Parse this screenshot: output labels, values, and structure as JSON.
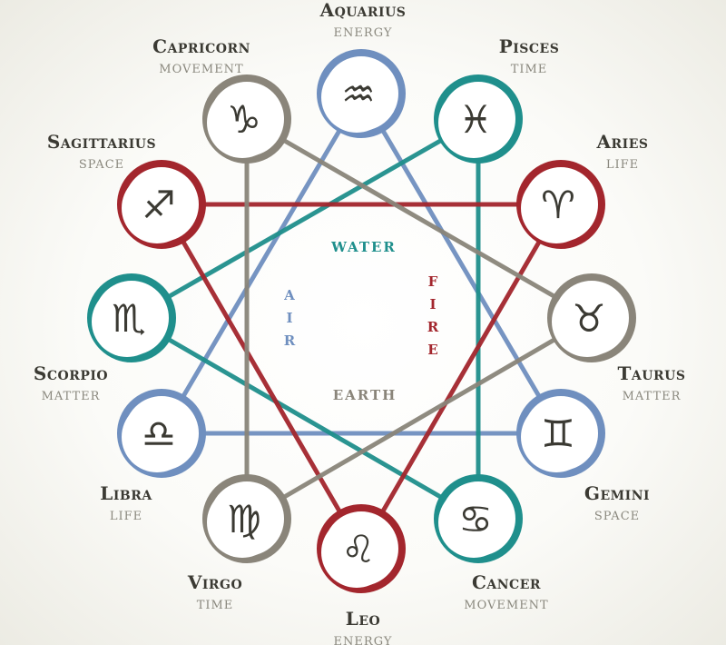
{
  "colors": {
    "air": "#6f8fbf",
    "water": "#1f8f8c",
    "fire": "#a3262d",
    "earth": "#8a857a",
    "ink": "#3b3a33",
    "sub": "#8a887e"
  },
  "elements": {
    "water": "WATER",
    "air": "AIR",
    "fire": "FIRE",
    "earth": "EARTH"
  },
  "signs": [
    {
      "id": "aquarius",
      "name": "Aquarius",
      "sub": "ENERGY",
      "glyph": "♒",
      "element": "air",
      "icon": "aquarius-icon"
    },
    {
      "id": "pisces",
      "name": "Pisces",
      "sub": "TIME",
      "glyph": "♓",
      "element": "water",
      "icon": "pisces-icon"
    },
    {
      "id": "aries",
      "name": "Aries",
      "sub": "LIFE",
      "glyph": "♈",
      "element": "fire",
      "icon": "aries-icon"
    },
    {
      "id": "taurus",
      "name": "Taurus",
      "sub": "MATTER",
      "glyph": "♉",
      "element": "earth",
      "icon": "taurus-icon"
    },
    {
      "id": "gemini",
      "name": "Gemini",
      "sub": "SPACE",
      "glyph": "♊",
      "element": "air",
      "icon": "gemini-icon"
    },
    {
      "id": "cancer",
      "name": "Cancer",
      "sub": "MOVEMENT",
      "glyph": "♋",
      "element": "water",
      "icon": "cancer-icon"
    },
    {
      "id": "leo",
      "name": "Leo",
      "sub": "ENERGY",
      "glyph": "♌",
      "element": "fire",
      "icon": "leo-icon"
    },
    {
      "id": "virgo",
      "name": "Virgo",
      "sub": "TIME",
      "glyph": "♍",
      "element": "earth",
      "icon": "virgo-icon"
    },
    {
      "id": "libra",
      "name": "Libra",
      "sub": "LIFE",
      "glyph": "♎",
      "element": "air",
      "icon": "libra-icon"
    },
    {
      "id": "scorpio",
      "name": "Scorpio",
      "sub": "MATTER",
      "glyph": "♏",
      "element": "water",
      "icon": "scorpio-icon"
    },
    {
      "id": "sagittarius",
      "name": "Sagittarius",
      "sub": "SPACE",
      "glyph": "♐",
      "element": "fire",
      "icon": "sagittarius-icon"
    },
    {
      "id": "capricorn",
      "name": "Capricorn",
      "sub": "MOVEMENT",
      "glyph": "♑",
      "element": "earth",
      "icon": "capricorn-icon"
    }
  ]
}
